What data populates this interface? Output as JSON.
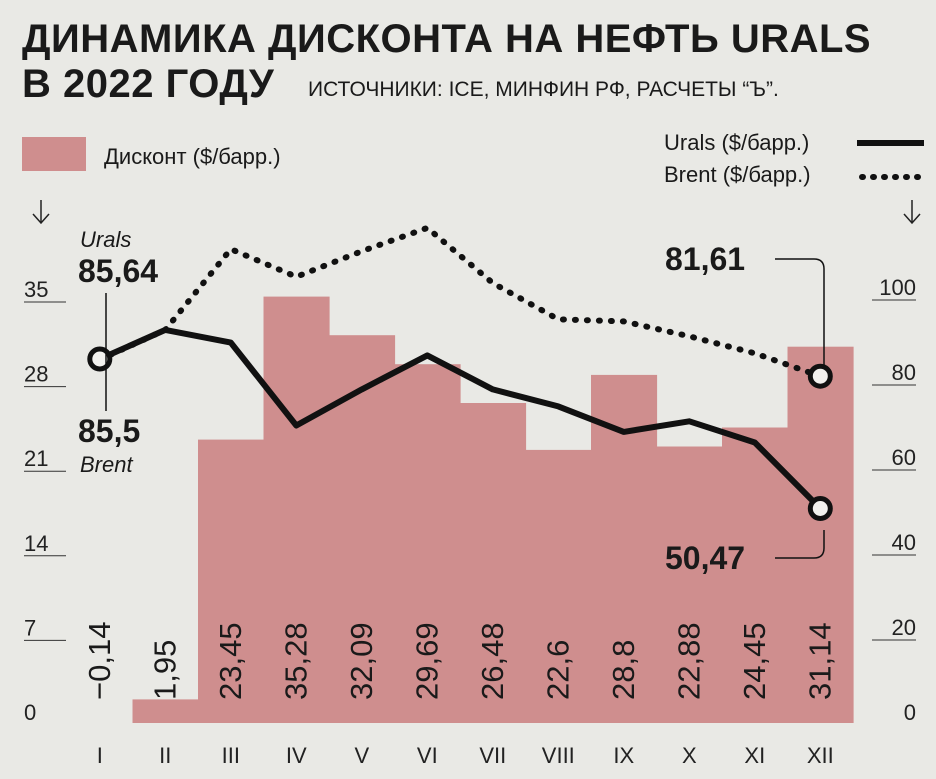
{
  "header": {
    "title_line1": "ДИНАМИКА ДИСКОНТА НА НЕФТЬ URALS",
    "title_line2": "В 2022 ГОДУ",
    "source": "ИСТОЧНИКИ: ICE, МИНФИН РФ, РАСЧЕТЫ “Ъ”."
  },
  "colors": {
    "background": "#e9e9e5",
    "bar": "#cf8e8e",
    "line": "#111111"
  },
  "legend": {
    "discount": "Дисконт ($/барр.)",
    "urals": "Urals  ($/барр.)",
    "brent": "Brent  ($/барр.)",
    "placement": "top"
  },
  "annotations": {
    "urals_start_label": "Urals",
    "urals_start_value": "85,64",
    "brent_start_value": "85,5",
    "brent_start_label": "Brent",
    "brent_end_value": "81,61",
    "urals_end_value": "50,47"
  },
  "chart_data": {
    "type": "bar",
    "categories": [
      "I",
      "II",
      "III",
      "IV",
      "V",
      "VI",
      "VII",
      "VIII",
      "IX",
      "X",
      "XI",
      "XII"
    ],
    "series": [
      {
        "name": "Дисконт ($/барр.)",
        "type": "bar",
        "axis": "left",
        "values": [
          -0.14,
          1.95,
          23.45,
          35.28,
          32.09,
          29.69,
          26.48,
          22.6,
          28.8,
          22.88,
          24.45,
          31.14
        ],
        "labels": [
          "−0,14",
          "1,95",
          "23,45",
          "35,28",
          "32,09",
          "29,69",
          "26,48",
          "22,6",
          "28,8",
          "22,88",
          "24,45",
          "31,14"
        ]
      },
      {
        "name": "Urals ($/барр.)",
        "type": "line",
        "axis": "right",
        "values": [
          85.64,
          92.5,
          89.5,
          70.0,
          78.5,
          86.5,
          78.5,
          74.5,
          68.5,
          71.0,
          66.0,
          50.47
        ]
      },
      {
        "name": "Brent ($/барр.)",
        "type": "line",
        "style": "dotted",
        "axis": "right",
        "values": [
          85.5,
          92.5,
          111.5,
          105.0,
          111.0,
          116.5,
          103.5,
          95.0,
          94.5,
          91.0,
          87.0,
          81.61
        ]
      }
    ],
    "left_axis": {
      "ylim": [
        0,
        35
      ],
      "ticks": [
        0,
        7,
        14,
        21,
        28,
        35
      ]
    },
    "right_axis": {
      "ylim": [
        0,
        100
      ],
      "ticks": [
        0,
        20,
        40,
        60,
        80,
        100
      ]
    },
    "grid": false
  }
}
